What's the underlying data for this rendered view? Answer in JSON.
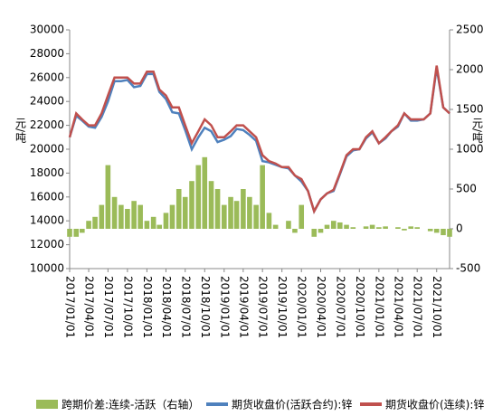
{
  "chart_data": {
    "type": "combo",
    "y_label": "元/吨",
    "y2_label": "元/吨",
    "x": [
      "2017/01/01",
      "2017/02/01",
      "2017/03/01",
      "2017/04/01",
      "2017/05/01",
      "2017/06/01",
      "2017/07/01",
      "2017/08/01",
      "2017/09/01",
      "2017/10/01",
      "2017/11/01",
      "2017/12/01",
      "2018/01/01",
      "2018/02/01",
      "2018/03/01",
      "2018/04/01",
      "2018/05/01",
      "2018/06/01",
      "2018/07/01",
      "2018/08/01",
      "2018/09/01",
      "2018/10/01",
      "2018/11/01",
      "2018/12/01",
      "2019/01/01",
      "2019/02/01",
      "2019/03/01",
      "2019/04/01",
      "2019/05/01",
      "2019/06/01",
      "2019/07/01",
      "2019/08/01",
      "2019/09/01",
      "2019/10/01",
      "2019/11/01",
      "2019/12/01",
      "2020/01/01",
      "2020/02/01",
      "2020/03/01",
      "2020/04/01",
      "2020/05/01",
      "2020/06/01",
      "2020/07/01",
      "2020/08/01",
      "2020/09/01",
      "2020/10/01",
      "2020/11/01",
      "2020/12/01",
      "2021/01/01",
      "2021/02/01",
      "2021/03/01",
      "2021/04/01",
      "2021/05/01",
      "2021/06/01",
      "2021/07/01",
      "2021/08/01",
      "2021/09/01",
      "2021/10/01",
      "2021/11/01",
      "2021/12/01"
    ],
    "xlim": [
      "2017/01/01",
      "2021/12/01"
    ],
    "xticks": [
      "2017/01/01",
      "2017/04/01",
      "2017/07/01",
      "2017/10/01",
      "2018/01/01",
      "2018/04/01",
      "2018/07/01",
      "2018/10/01",
      "2019/01/01",
      "2019/04/01",
      "2019/07/01",
      "2019/10/01",
      "2020/01/01",
      "2020/04/01",
      "2020/07/01",
      "2020/10/01",
      "2021/01/01",
      "2021/04/01",
      "2021/07/01",
      "2021/10/01"
    ],
    "ylim": [
      10000,
      30000
    ],
    "yticks": [
      10000,
      12000,
      14000,
      16000,
      18000,
      20000,
      22000,
      24000,
      26000,
      28000,
      30000
    ],
    "y2lim": [
      -500,
      2500
    ],
    "y2ticks": [
      -500,
      0,
      500,
      1000,
      1500,
      2000,
      2500
    ],
    "series": [
      {
        "name": "跨期价差:连续-活跃（右轴）",
        "type": "bar",
        "axis": "y2",
        "color": "#9bbb59",
        "values": [
          -100,
          -100,
          -50,
          100,
          150,
          300,
          800,
          400,
          300,
          250,
          350,
          300,
          100,
          150,
          50,
          200,
          300,
          500,
          400,
          600,
          800,
          900,
          600,
          500,
          300,
          400,
          350,
          500,
          400,
          300,
          800,
          200,
          50,
          0,
          100,
          -50,
          300,
          0,
          -100,
          -50,
          50,
          100,
          80,
          50,
          20,
          0,
          30,
          50,
          20,
          30,
          0,
          20,
          -20,
          30,
          20,
          0,
          -30,
          -50,
          -80,
          -100
        ]
      },
      {
        "name": "期货收盘价(活跃合约):锌",
        "type": "line",
        "color": "#4f81bd",
        "values": [
          21000,
          22800,
          22400,
          21900,
          21800,
          22700,
          24000,
          25700,
          25700,
          25800,
          25200,
          25300,
          26300,
          26300,
          24800,
          24200,
          23100,
          23000,
          21600,
          20000,
          21000,
          21800,
          21500,
          20600,
          20800,
          21100,
          21700,
          21600,
          21200,
          20700,
          19000,
          18900,
          18700,
          18500,
          18400,
          17800,
          17300,
          16500,
          14800,
          15800,
          16300,
          16500,
          17900,
          19400,
          19900,
          20000,
          20900,
          21400,
          20500,
          20900,
          21500,
          21900,
          23000,
          22400,
          22400,
          22500,
          23000,
          26800,
          23500,
          23000
        ]
      },
      {
        "name": "期货收盘价(连续):锌",
        "type": "line",
        "color": "#c0504d",
        "values": [
          21000,
          23000,
          22500,
          22000,
          22000,
          23000,
          24500,
          26000,
          26000,
          26000,
          25500,
          25500,
          26500,
          26500,
          25000,
          24500,
          23500,
          23500,
          22000,
          20500,
          21500,
          22500,
          22000,
          21000,
          21000,
          21500,
          22000,
          22000,
          21500,
          21000,
          19500,
          19000,
          18800,
          18500,
          18500,
          17800,
          17500,
          16500,
          14800,
          15800,
          16300,
          16600,
          18000,
          19500,
          20000,
          20000,
          21000,
          21500,
          20500,
          21000,
          21500,
          22000,
          23000,
          22500,
          22500,
          22500,
          23000,
          27000,
          23500,
          23000
        ]
      }
    ]
  }
}
